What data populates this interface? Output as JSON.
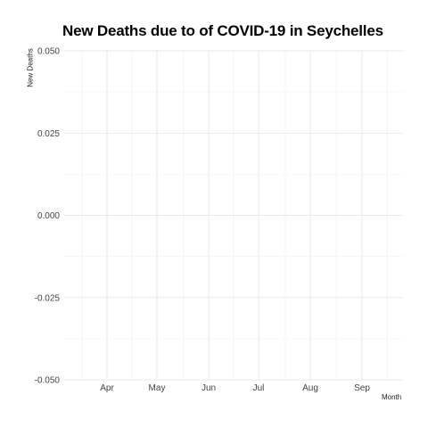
{
  "chart_data": {
    "type": "line",
    "title": "New Deaths due to of COVID-19 in Seychelles",
    "xlabel": "Month",
    "ylabel": "New Deaths",
    "x_ticks": [
      "Apr",
      "May",
      "Jun",
      "Jul",
      "Aug",
      "Sep"
    ],
    "y_ticks": [
      "0.050",
      "0.025",
      "0.000",
      "-0.025",
      "-0.050"
    ],
    "y_tick_values": [
      0.05,
      0.025,
      0.0,
      -0.025,
      -0.05
    ],
    "ylim": [
      -0.05,
      0.05
    ],
    "grid": true,
    "series": []
  }
}
